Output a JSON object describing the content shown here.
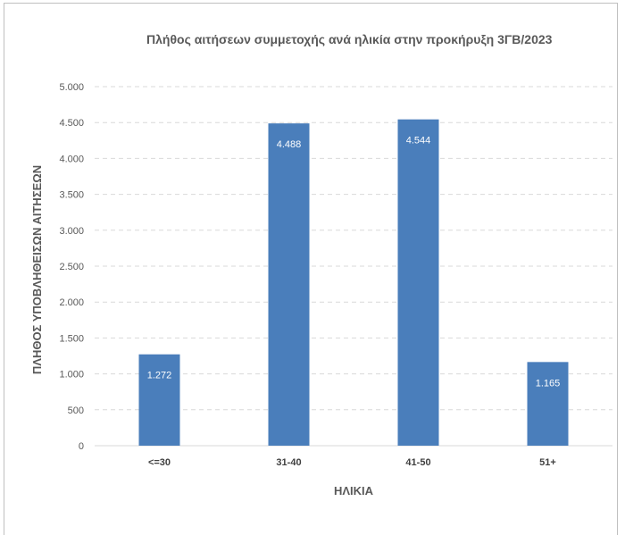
{
  "chart_data": {
    "type": "bar",
    "title": "Πλήθος αιτήσεων συμμετοχής ανά ηλικία στην προκήρυξη 3ΓΒ/2023",
    "xlabel": "ΗΛΙΚΙΑ",
    "ylabel": "ΠΛΗΘΟΣ ΥΠΟΒΛΗΘΕΙΣΩΝ ΑΙΤΗΣΕΩΝ",
    "categories": [
      "<=30",
      "31-40",
      "41-50",
      "51+"
    ],
    "values": [
      1272,
      4488,
      4544,
      1165
    ],
    "data_labels": [
      "1.272",
      "4.488",
      "4.544",
      "1.165"
    ],
    "ylim": [
      0,
      5000
    ],
    "yticks": [
      0,
      500,
      1000,
      1500,
      2000,
      2500,
      3000,
      3500,
      4000,
      4500,
      5000
    ],
    "ytick_labels": [
      "0",
      "500",
      "1.000",
      "1.500",
      "2.000",
      "2.500",
      "3.000",
      "3.500",
      "4.000",
      "4.500",
      "5.000"
    ],
    "grid": true,
    "legend": "none",
    "bar_color": "#4a7ebb",
    "grid_color": "#d9d9d9"
  }
}
